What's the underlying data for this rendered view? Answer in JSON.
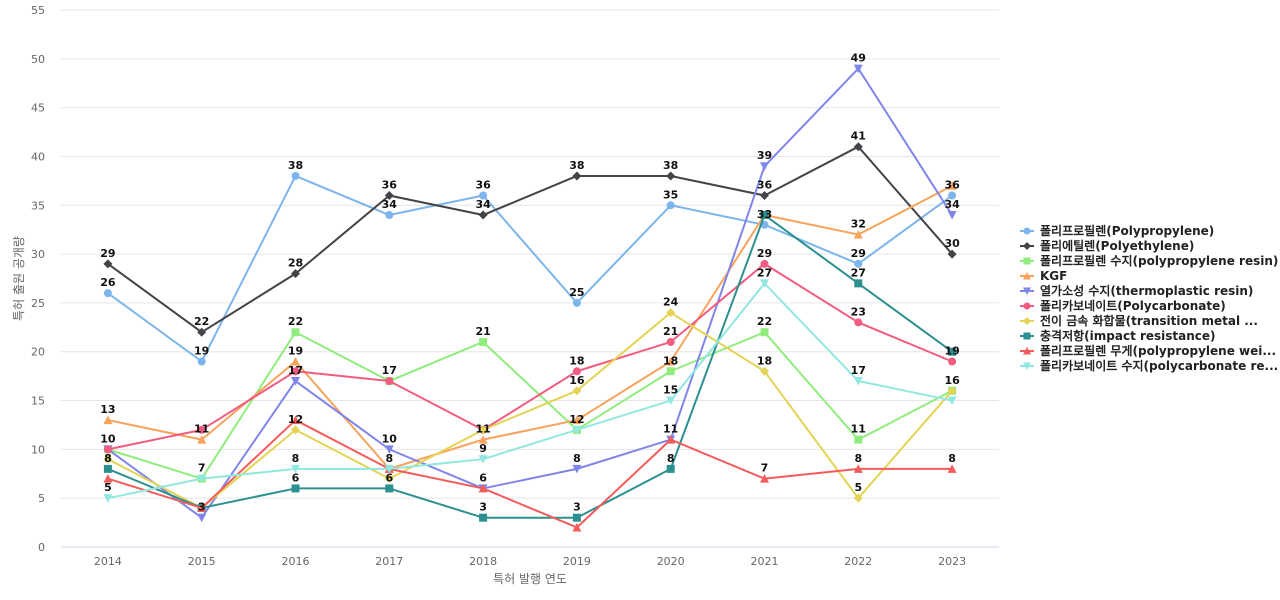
{
  "chart_data": {
    "type": "line",
    "title": "",
    "xlabel": "특허 발행 연도",
    "ylabel": "특허 출원 공개량",
    "categories": [
      "2014",
      "2015",
      "2016",
      "2017",
      "2018",
      "2019",
      "2020",
      "2021",
      "2022",
      "2023"
    ],
    "ylim": [
      0,
      55
    ],
    "yticks": [
      0,
      5,
      10,
      15,
      20,
      25,
      30,
      35,
      40,
      45,
      50,
      55
    ],
    "grid": true,
    "legend_position": "right",
    "series": [
      {
        "name": "폴리프로필렌(Polypropylene)",
        "color": "#7cb5ec",
        "marker": "circle",
        "values": [
          26,
          19,
          38,
          34,
          36,
          25,
          35,
          33,
          29,
          36
        ]
      },
      {
        "name": "폴리에틸렌(Polyethylene)",
        "color": "#434348",
        "marker": "diamond",
        "values": [
          29,
          22,
          28,
          36,
          34,
          38,
          38,
          36,
          41,
          30
        ]
      },
      {
        "name": "폴리프로필렌 수지(polypropylene resin)",
        "color": "#90ed7d",
        "marker": "square",
        "values": [
          10,
          7,
          22,
          17,
          21,
          12,
          18,
          22,
          11,
          16
        ]
      },
      {
        "name": "KGF",
        "color": "#f7a35c",
        "marker": "triangle",
        "values": [
          13,
          11,
          19,
          8,
          11,
          13,
          19,
          34,
          32,
          37
        ]
      },
      {
        "name": "열가소성 수지(thermoplastic resin)",
        "color": "#8085e9",
        "marker": "triangle-down",
        "values": [
          10,
          3,
          17,
          10,
          6,
          8,
          11,
          39,
          49,
          34
        ]
      },
      {
        "name": "폴리카보네이트(Polycarbonate)",
        "color": "#f15c80",
        "marker": "circle",
        "values": [
          10,
          12,
          18,
          17,
          12,
          18,
          21,
          29,
          23,
          19
        ]
      },
      {
        "name": "전이 금속 화합물(transition metal ...",
        "color": "#e4d354",
        "marker": "diamond",
        "values": [
          9,
          4,
          12,
          7,
          12,
          16,
          24,
          18,
          5,
          16
        ]
      },
      {
        "name": "충격저항(impact resistance)",
        "color": "#2b908f",
        "marker": "square",
        "values": [
          8,
          4,
          6,
          6,
          3,
          3,
          8,
          34,
          27,
          20
        ]
      },
      {
        "name": "폴리프로필렌 무게(polypropylene wei...",
        "color": "#f45b5b",
        "marker": "triangle",
        "values": [
          7,
          4,
          13,
          8,
          6,
          2,
          11,
          7,
          8,
          8
        ]
      },
      {
        "name": "폴리카보네이트 수지(polycarbonate re...",
        "color": "#91e8e1",
        "marker": "triangle-down",
        "values": [
          5,
          7,
          8,
          8,
          9,
          12,
          15,
          27,
          17,
          15
        ]
      }
    ],
    "data_labels": [
      {
        "text": "26",
        "x": "2014",
        "y": 26
      },
      {
        "text": "29",
        "x": "2014",
        "y": 29
      },
      {
        "text": "13",
        "x": "2014",
        "y": 13
      },
      {
        "text": "10",
        "x": "2014",
        "y": 10
      },
      {
        "text": "8",
        "x": "2014",
        "y": 8
      },
      {
        "text": "5",
        "x": "2014",
        "y": 5
      },
      {
        "text": "19",
        "x": "2015",
        "y": 19
      },
      {
        "text": "22",
        "x": "2015",
        "y": 22
      },
      {
        "text": "11",
        "x": "2015",
        "y": 11
      },
      {
        "text": "7",
        "x": "2015",
        "y": 7
      },
      {
        "text": "3",
        "x": "2015",
        "y": 3
      },
      {
        "text": "38",
        "x": "2016",
        "y": 38
      },
      {
        "text": "28",
        "x": "2016",
        "y": 28
      },
      {
        "text": "22",
        "x": "2016",
        "y": 22
      },
      {
        "text": "19",
        "x": "2016",
        "y": 19
      },
      {
        "text": "17",
        "x": "2016",
        "y": 17
      },
      {
        "text": "12",
        "x": "2016",
        "y": 12
      },
      {
        "text": "8",
        "x": "2016",
        "y": 8
      },
      {
        "text": "6",
        "x": "2016",
        "y": 6
      },
      {
        "text": "36",
        "x": "2017",
        "y": 36
      },
      {
        "text": "34",
        "x": "2017",
        "y": 34
      },
      {
        "text": "17",
        "x": "2017",
        "y": 17
      },
      {
        "text": "10",
        "x": "2017",
        "y": 10
      },
      {
        "text": "8",
        "x": "2017",
        "y": 8
      },
      {
        "text": "6",
        "x": "2017",
        "y": 6
      },
      {
        "text": "36",
        "x": "2018",
        "y": 36
      },
      {
        "text": "34",
        "x": "2018",
        "y": 34
      },
      {
        "text": "21",
        "x": "2018",
        "y": 21
      },
      {
        "text": "11",
        "x": "2018",
        "y": 11
      },
      {
        "text": "9",
        "x": "2018",
        "y": 9
      },
      {
        "text": "6",
        "x": "2018",
        "y": 6
      },
      {
        "text": "3",
        "x": "2018",
        "y": 3
      },
      {
        "text": "38",
        "x": "2019",
        "y": 38
      },
      {
        "text": "25",
        "x": "2019",
        "y": 25
      },
      {
        "text": "18",
        "x": "2019",
        "y": 18
      },
      {
        "text": "16",
        "x": "2019",
        "y": 16
      },
      {
        "text": "12",
        "x": "2019",
        "y": 12
      },
      {
        "text": "8",
        "x": "2019",
        "y": 8
      },
      {
        "text": "3",
        "x": "2019",
        "y": 3
      },
      {
        "text": "38",
        "x": "2020",
        "y": 38
      },
      {
        "text": "35",
        "x": "2020",
        "y": 35
      },
      {
        "text": "24",
        "x": "2020",
        "y": 24
      },
      {
        "text": "21",
        "x": "2020",
        "y": 21
      },
      {
        "text": "18",
        "x": "2020",
        "y": 18
      },
      {
        "text": "15",
        "x": "2020",
        "y": 15
      },
      {
        "text": "11",
        "x": "2020",
        "y": 11
      },
      {
        "text": "8",
        "x": "2020",
        "y": 8
      },
      {
        "text": "39",
        "x": "2021",
        "y": 39
      },
      {
        "text": "36",
        "x": "2021",
        "y": 36
      },
      {
        "text": "33",
        "x": "2021",
        "y": 33
      },
      {
        "text": "29",
        "x": "2021",
        "y": 29
      },
      {
        "text": "27",
        "x": "2021",
        "y": 27
      },
      {
        "text": "22",
        "x": "2021",
        "y": 22
      },
      {
        "text": "18",
        "x": "2021",
        "y": 18
      },
      {
        "text": "7",
        "x": "2021",
        "y": 7
      },
      {
        "text": "49",
        "x": "2022",
        "y": 49
      },
      {
        "text": "41",
        "x": "2022",
        "y": 41
      },
      {
        "text": "32",
        "x": "2022",
        "y": 32
      },
      {
        "text": "29",
        "x": "2022",
        "y": 29
      },
      {
        "text": "27",
        "x": "2022",
        "y": 27
      },
      {
        "text": "23",
        "x": "2022",
        "y": 23
      },
      {
        "text": "17",
        "x": "2022",
        "y": 17
      },
      {
        "text": "11",
        "x": "2022",
        "y": 11
      },
      {
        "text": "8",
        "x": "2022",
        "y": 8
      },
      {
        "text": "5",
        "x": "2022",
        "y": 5
      },
      {
        "text": "36",
        "x": "2023",
        "y": 36
      },
      {
        "text": "34",
        "x": "2023",
        "y": 34
      },
      {
        "text": "30",
        "x": "2023",
        "y": 30
      },
      {
        "text": "19",
        "x": "2023",
        "y": 19
      },
      {
        "text": "16",
        "x": "2023",
        "y": 16
      },
      {
        "text": "8",
        "x": "2023",
        "y": 8
      }
    ]
  }
}
